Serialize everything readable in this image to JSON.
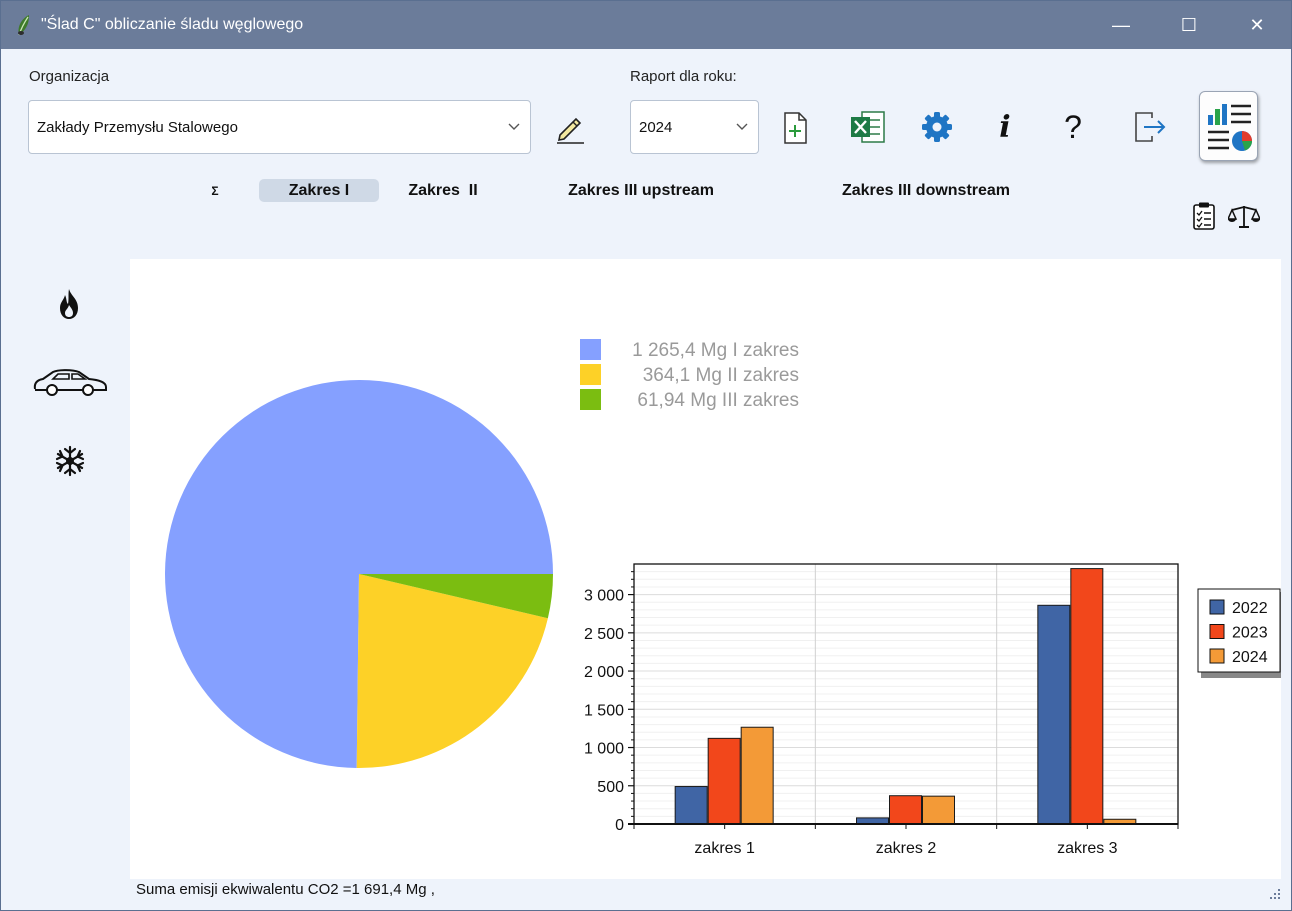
{
  "window": {
    "title": "\"Ślad C\" obliczanie śladu węglowego",
    "minimize_glyph": "—",
    "maximize_glyph": "☐",
    "close_glyph": "✕"
  },
  "organization": {
    "label": "Organizacja",
    "selected": "Zakłady Przemysłu Stalowego"
  },
  "report": {
    "label": "Raport dla roku:",
    "selected_year": "2024"
  },
  "toolbar": {
    "info_glyph": "i",
    "help_glyph": "?"
  },
  "tabs": [
    {
      "label": "Σ"
    },
    {
      "label": "Zakres I"
    },
    {
      "label": "Zakres  II"
    },
    {
      "label": "Zakres III upstream"
    },
    {
      "label": "Zakres III downstream"
    }
  ],
  "status_text": "Suma emisji ekwiwalentu CO2 =1 691,4 Mg ,",
  "colors": {
    "pie_scope1": "#85a0ff",
    "pie_scope2": "#fdd127",
    "pie_scope3": "#7bbd11",
    "bar_2022": "#4065a5",
    "bar_2023": "#f2471b",
    "bar_2024": "#f39a37"
  },
  "chart_data": [
    {
      "type": "pie",
      "legend": [
        {
          "label": "1 265,4 Mg I zakres",
          "value": 1265.4
        },
        {
          "label": "364,1 Mg II zakres",
          "value": 364.1
        },
        {
          "label": "61,94 Mg III zakres",
          "value": 61.94
        }
      ]
    },
    {
      "type": "bar",
      "categories": [
        "zakres 1",
        "zakres 2",
        "zakres 3"
      ],
      "series": [
        {
          "name": "2022",
          "values": [
            490,
            80,
            2860
          ]
        },
        {
          "name": "2023",
          "values": [
            1120,
            370,
            3340
          ]
        },
        {
          "name": "2024",
          "values": [
            1265.4,
            364.1,
            61.94
          ]
        }
      ],
      "ylim": [
        0,
        3400
      ],
      "yticks": [
        0,
        500,
        1000,
        1500,
        2000,
        2500,
        3000
      ],
      "ytick_labels": [
        "0",
        "500",
        "1 000",
        "1 500",
        "2 000",
        "2 500",
        "3 000"
      ],
      "grid": true,
      "legend_position": "right"
    }
  ]
}
